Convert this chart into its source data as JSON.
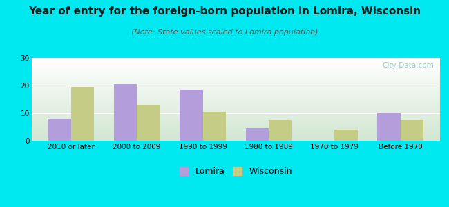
{
  "title": "Year of entry for the foreign-born population in Lomira, Wisconsin",
  "subtitle": "(Note: State values scaled to Lomira population)",
  "categories": [
    "2010 or later",
    "2000 to 2009",
    "1990 to 1999",
    "1980 to 1989",
    "1970 to 1979",
    "Before 1970"
  ],
  "lomira_values": [
    8,
    20.5,
    18.5,
    4.5,
    0,
    10
  ],
  "wisconsin_values": [
    19.5,
    13,
    10.5,
    7.5,
    4,
    7.5
  ],
  "lomira_color": "#b39ddb",
  "wisconsin_color": "#c5cc85",
  "background_color": "#00e8f0",
  "ylim": [
    0,
    30
  ],
  "yticks": [
    0,
    10,
    20,
    30
  ],
  "bar_width": 0.35,
  "title_fontsize": 11,
  "subtitle_fontsize": 8,
  "tick_fontsize": 7.5,
  "legend_fontsize": 9
}
